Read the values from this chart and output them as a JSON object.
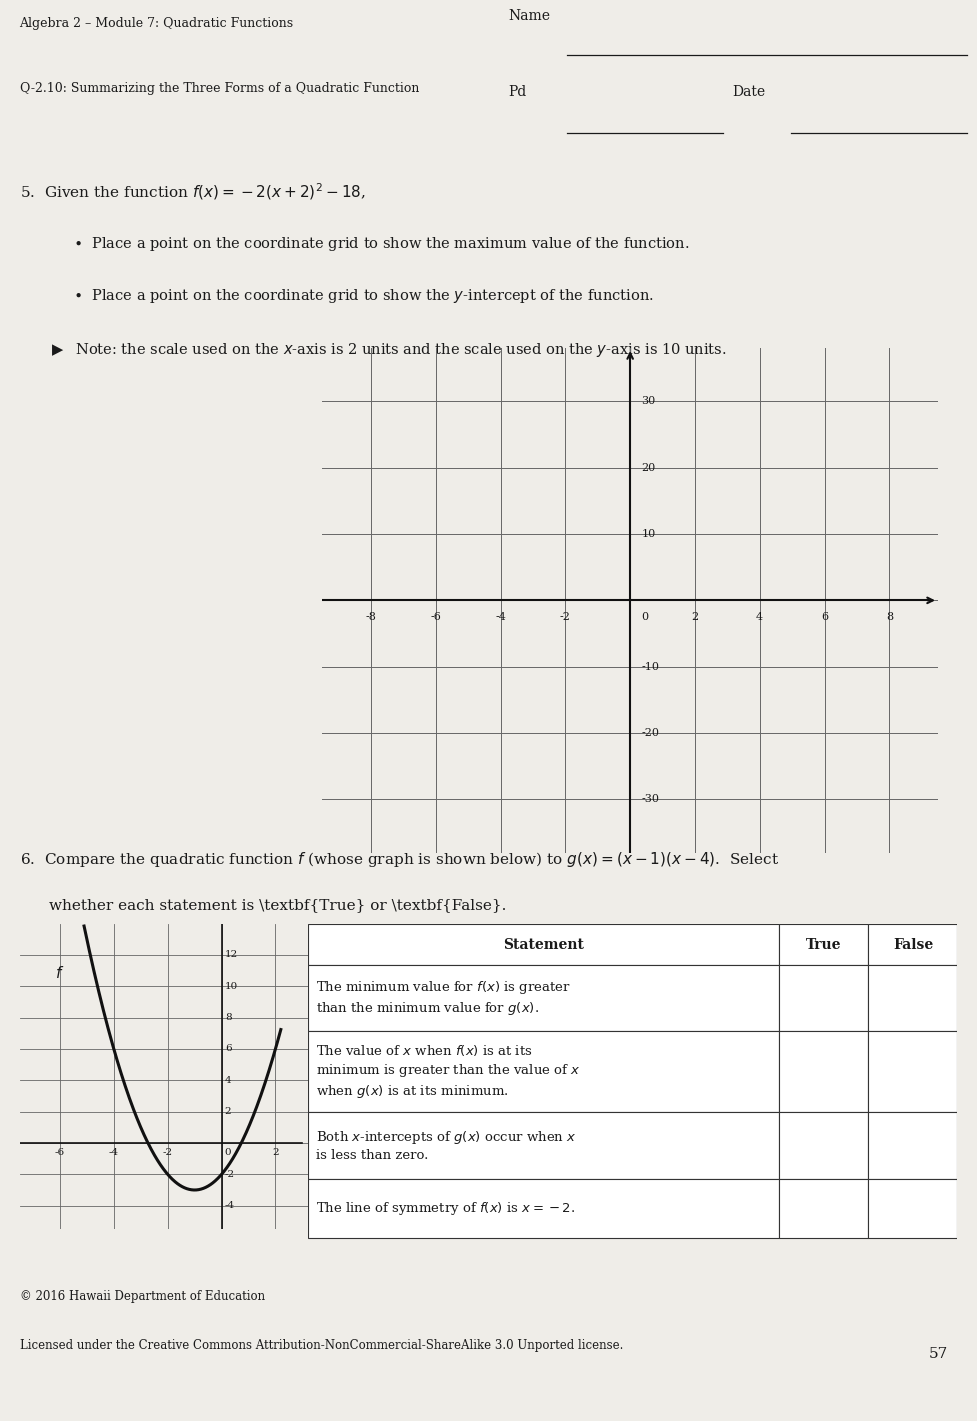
{
  "title_line1": "Algebra 2 – Module 7: Quadratic Functions",
  "title_line2": "Q-2.10: Summarizing the Three Forms of a Quadratic Function",
  "name_label": "Name",
  "pd_label": "Pd",
  "date_label": "Date",
  "q5_text": "5.  Given the function $f(x) = -2(x + 2)^2 - 18$,",
  "q5_bullet1": "Place a point on the coordinate grid to show the maximum value of the function.",
  "q5_bullet2": "Place a point on the coordinate grid to show the $y$-intercept of the function.",
  "q5_note": "Note: the scale used on the $x$-axis is 2 units and the scale used on the $y$-axis is 10 units.",
  "grid1_xticks": [
    -8,
    -6,
    -4,
    -2,
    2,
    4,
    6,
    8
  ],
  "grid1_yticks": [
    -30,
    -20,
    -10,
    10,
    20,
    30
  ],
  "grid2_xticks": [
    -6,
    -4,
    -2,
    2
  ],
  "grid2_yticks": [
    -4,
    -2,
    2,
    4,
    6,
    8,
    10,
    12
  ],
  "statements": [
    "The minimum value for $f(x)$ is greater\nthan the minimum value for $g(x)$.",
    "The value of $x$ when $f(x)$ is at its\nminimum is greater than the value of $x$\nwhen $g(x)$ is at its minimum.",
    "Both $x$-intercepts of $g(x)$ occur when $x$\nis less than zero.",
    "The line of symmetry of $f(x)$ is $x = -2$."
  ],
  "footer1": "© 2016 Hawaii Department of Education",
  "footer2": "Licensed under the Creative Commons Attribution-NonCommercial-ShareAlike 3.0 Unported license.",
  "page_num": "57",
  "bg_color": "#efede8",
  "text_color": "#1a1a1a",
  "grid_color": "#666666",
  "axis_color": "#111111"
}
